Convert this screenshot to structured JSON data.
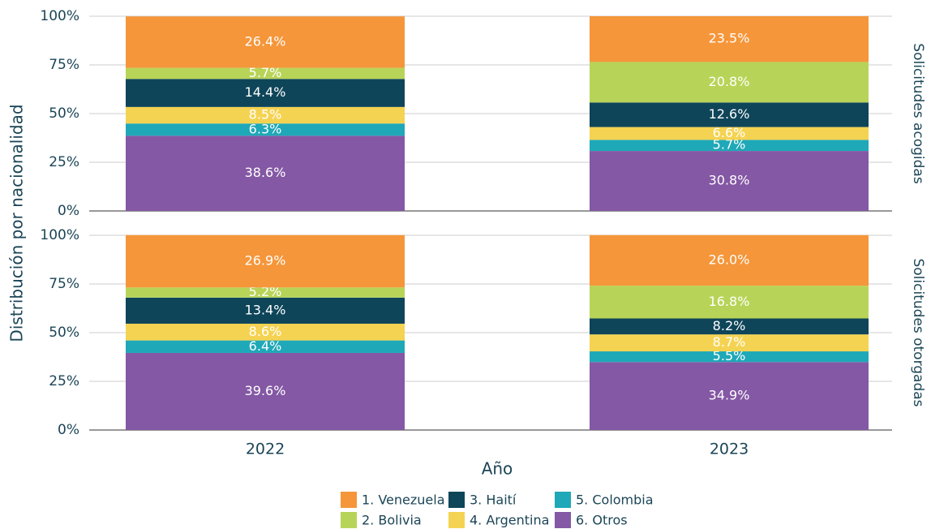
{
  "chart_data": [
    {
      "type": "bar",
      "stacked": true,
      "panel_label": "Solicitudes acogidas",
      "y_label": "Distribución por nacionalidad",
      "categories": [
        "2022",
        "2023"
      ],
      "ylim": [
        0,
        100
      ],
      "yticks": [
        {
          "value": 0,
          "label": "0%"
        },
        {
          "value": 25,
          "label": "25%"
        },
        {
          "value": 50,
          "label": "50%"
        },
        {
          "value": 75,
          "label": "75%"
        },
        {
          "value": 100,
          "label": "100%"
        }
      ],
      "grid": true,
      "series": [
        {
          "name": "1. Venezuela",
          "color": "#f5963a",
          "values": [
            26.4,
            23.5
          ],
          "value_labels": [
            "26.4%",
            "23.5%"
          ]
        },
        {
          "name": "2. Bolivia",
          "color": "#b8d458",
          "values": [
            5.7,
            20.8
          ],
          "value_labels": [
            "5.7%",
            "20.8%"
          ]
        },
        {
          "name": "3. Haití",
          "color": "#0e4559",
          "values": [
            14.4,
            12.6
          ],
          "value_labels": [
            "14.4%",
            "12.6%"
          ]
        },
        {
          "name": "4. Argentina",
          "color": "#f5d352",
          "values": [
            8.5,
            6.6
          ],
          "value_labels": [
            "8.5%",
            "6.6%"
          ]
        },
        {
          "name": "5. Colombia",
          "color": "#1fa8b8",
          "values": [
            6.3,
            5.7
          ],
          "value_labels": [
            "6.3%",
            "5.7%"
          ]
        },
        {
          "name": "6. Otros",
          "color": "#8458a4",
          "values": [
            38.6,
            30.8
          ],
          "value_labels": [
            "38.6%",
            "30.8%"
          ]
        }
      ]
    },
    {
      "type": "bar",
      "stacked": true,
      "panel_label": "Solicitudes otorgadas",
      "x_label": "Año",
      "categories": [
        "2022",
        "2023"
      ],
      "ylim": [
        0,
        100
      ],
      "yticks": [
        {
          "value": 0,
          "label": "0%"
        },
        {
          "value": 25,
          "label": "25%"
        },
        {
          "value": 50,
          "label": "50%"
        },
        {
          "value": 75,
          "label": "75%"
        },
        {
          "value": 100,
          "label": "100%"
        }
      ],
      "grid": true,
      "series": [
        {
          "name": "1. Venezuela",
          "color": "#f5963a",
          "values": [
            26.9,
            26.0
          ],
          "value_labels": [
            "26.9%",
            "26.0%"
          ]
        },
        {
          "name": "2. Bolivia",
          "color": "#b8d458",
          "values": [
            5.2,
            16.8
          ],
          "value_labels": [
            "5.2%",
            "16.8%"
          ]
        },
        {
          "name": "3. Haití",
          "color": "#0e4559",
          "values": [
            13.4,
            8.2
          ],
          "value_labels": [
            "13.4%",
            "8.2%"
          ]
        },
        {
          "name": "4. Argentina",
          "color": "#f5d352",
          "values": [
            8.6,
            8.7
          ],
          "value_labels": [
            "8.6%",
            "8.7%"
          ]
        },
        {
          "name": "5. Colombia",
          "color": "#1fa8b8",
          "values": [
            6.4,
            5.5
          ],
          "value_labels": [
            "6.4%",
            "5.5%"
          ]
        },
        {
          "name": "6. Otros",
          "color": "#8458a4",
          "values": [
            39.6,
            34.9
          ],
          "value_labels": [
            "39.6%",
            "34.9%"
          ]
        }
      ]
    }
  ]
}
